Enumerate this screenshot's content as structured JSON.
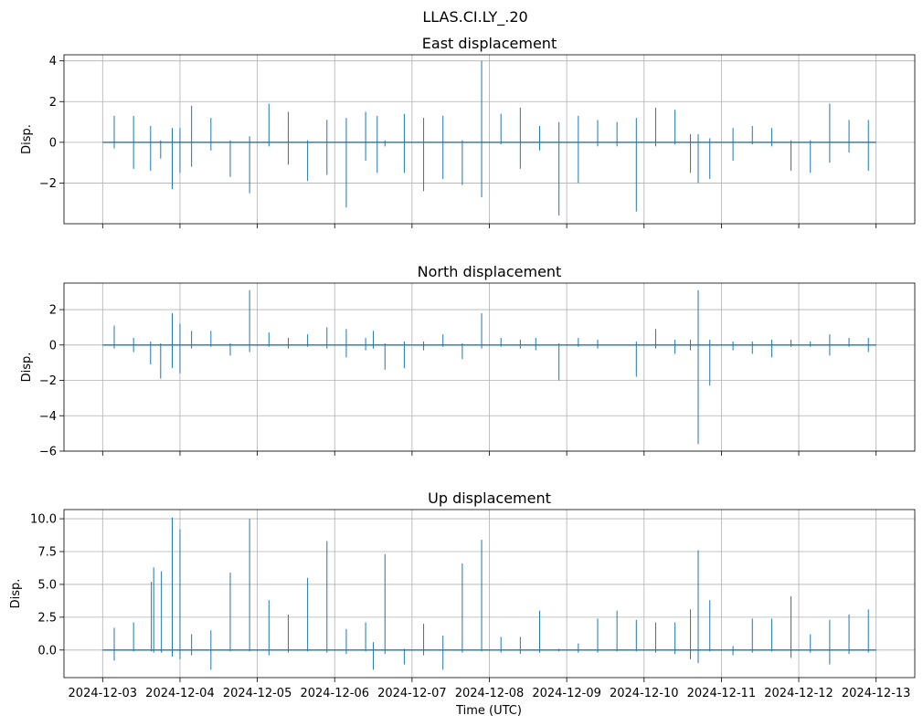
{
  "figure": {
    "suptitle": "LLAS.CI.LY_.20",
    "xlabel": "Time (UTC)",
    "line_color": "#1f77b4",
    "grid_color": "#b0b0b0"
  },
  "chart_data": [
    {
      "type": "line",
      "title": "East displacement",
      "ylabel": "Disp.",
      "ylim": [
        -4.0,
        4.3
      ],
      "yticks": [
        -2,
        0,
        2,
        4
      ],
      "ytick_labels": [
        "−2",
        "0",
        "2",
        "4"
      ],
      "xlim": [
        -0.5,
        10.5
      ],
      "x_tick_labels": [
        "2024-12-03",
        "2024-12-04",
        "2024-12-05",
        "2024-12-06",
        "2024-12-07",
        "2024-12-08",
        "2024-12-09",
        "2024-12-10",
        "2024-12-11",
        "2024-12-12",
        "2024-12-13"
      ],
      "show_x_tick_labels": false,
      "grid": true,
      "spikes": [
        {
          "x": 0.15,
          "min": -0.3,
          "max": 1.3
        },
        {
          "x": 0.4,
          "min": -1.3,
          "max": 1.3
        },
        {
          "x": 0.62,
          "min": -1.4,
          "max": 0.8
        },
        {
          "x": 0.75,
          "min": -0.8,
          "max": 0.1
        },
        {
          "x": 0.9,
          "min": -2.3,
          "max": 0.7
        },
        {
          "x": 1.0,
          "min": -1.5,
          "max": 0.7
        },
        {
          "x": 1.15,
          "min": -1.2,
          "max": 1.8
        },
        {
          "x": 1.4,
          "min": -0.4,
          "max": 1.2
        },
        {
          "x": 1.65,
          "min": -1.7,
          "max": 0.1
        },
        {
          "x": 1.9,
          "min": -2.5,
          "max": 0.3
        },
        {
          "x": 2.15,
          "min": -0.2,
          "max": 1.9
        },
        {
          "x": 2.4,
          "min": -1.1,
          "max": 1.5
        },
        {
          "x": 2.65,
          "min": -1.9,
          "max": 0.1
        },
        {
          "x": 2.9,
          "min": -1.6,
          "max": 1.1
        },
        {
          "x": 3.15,
          "min": -3.2,
          "max": 1.2
        },
        {
          "x": 3.4,
          "min": -0.9,
          "max": 1.5
        },
        {
          "x": 3.55,
          "min": -1.5,
          "max": 1.3
        },
        {
          "x": 3.65,
          "min": -0.2,
          "max": 0.1
        },
        {
          "x": 3.9,
          "min": -1.5,
          "max": 1.4
        },
        {
          "x": 4.15,
          "min": -2.4,
          "max": 1.2
        },
        {
          "x": 4.4,
          "min": -1.8,
          "max": 1.3
        },
        {
          "x": 4.65,
          "min": -2.1,
          "max": 0.1
        },
        {
          "x": 4.9,
          "min": -2.7,
          "max": 4.0
        },
        {
          "x": 5.15,
          "min": -0.1,
          "max": 1.4
        },
        {
          "x": 5.4,
          "min": -1.3,
          "max": 1.7
        },
        {
          "x": 5.65,
          "min": -0.4,
          "max": 0.8
        },
        {
          "x": 5.9,
          "min": -3.6,
          "max": 1.0
        },
        {
          "x": 6.15,
          "min": -2.0,
          "max": 1.3
        },
        {
          "x": 6.4,
          "min": -0.2,
          "max": 1.1
        },
        {
          "x": 6.65,
          "min": -0.2,
          "max": 1.0
        },
        {
          "x": 6.9,
          "min": -3.4,
          "max": 1.2
        },
        {
          "x": 7.15,
          "min": -0.2,
          "max": 1.7
        },
        {
          "x": 7.4,
          "min": -0.1,
          "max": 1.6
        },
        {
          "x": 7.6,
          "min": -1.5,
          "max": 0.4
        },
        {
          "x": 7.7,
          "min": -2.0,
          "max": 0.4
        },
        {
          "x": 7.85,
          "min": -1.8,
          "max": 0.2
        },
        {
          "x": 8.15,
          "min": -0.9,
          "max": 0.7
        },
        {
          "x": 8.4,
          "min": -0.1,
          "max": 0.8
        },
        {
          "x": 8.65,
          "min": -0.2,
          "max": 0.7
        },
        {
          "x": 8.9,
          "min": -1.4,
          "max": 0.1
        },
        {
          "x": 9.15,
          "min": -1.5,
          "max": 0.1
        },
        {
          "x": 9.4,
          "min": -1.0,
          "max": 1.9
        },
        {
          "x": 9.65,
          "min": -0.5,
          "max": 1.1
        },
        {
          "x": 9.9,
          "min": -1.4,
          "max": 1.1
        }
      ]
    },
    {
      "type": "line",
      "title": "North displacement",
      "ylabel": "Disp.",
      "ylim": [
        -6.0,
        3.5
      ],
      "yticks": [
        -6,
        -4,
        -2,
        0,
        2
      ],
      "ytick_labels": [
        "−6",
        "−4",
        "−2",
        "0",
        "2"
      ],
      "xlim": [
        -0.5,
        10.5
      ],
      "x_tick_labels": [
        "2024-12-03",
        "2024-12-04",
        "2024-12-05",
        "2024-12-06",
        "2024-12-07",
        "2024-12-08",
        "2024-12-09",
        "2024-12-10",
        "2024-12-11",
        "2024-12-12",
        "2024-12-13"
      ],
      "show_x_tick_labels": false,
      "grid": true,
      "spikes": [
        {
          "x": 0.15,
          "min": -0.2,
          "max": 1.1
        },
        {
          "x": 0.4,
          "min": -0.4,
          "max": 0.4
        },
        {
          "x": 0.62,
          "min": -1.1,
          "max": 0.2
        },
        {
          "x": 0.75,
          "min": -1.9,
          "max": 0.1
        },
        {
          "x": 0.9,
          "min": -1.3,
          "max": 1.8
        },
        {
          "x": 1.0,
          "min": -1.6,
          "max": 1.2
        },
        {
          "x": 1.15,
          "min": -0.2,
          "max": 0.8
        },
        {
          "x": 1.4,
          "min": -0.1,
          "max": 0.8
        },
        {
          "x": 1.65,
          "min": -0.6,
          "max": 0.1
        },
        {
          "x": 1.9,
          "min": -0.4,
          "max": 3.1
        },
        {
          "x": 2.15,
          "min": -0.1,
          "max": 0.7
        },
        {
          "x": 2.4,
          "min": -0.2,
          "max": 0.4
        },
        {
          "x": 2.65,
          "min": -0.1,
          "max": 0.6
        },
        {
          "x": 2.9,
          "min": -0.2,
          "max": 1.0
        },
        {
          "x": 3.15,
          "min": -0.7,
          "max": 0.9
        },
        {
          "x": 3.4,
          "min": -0.3,
          "max": 0.4
        },
        {
          "x": 3.5,
          "min": -0.2,
          "max": 0.8
        },
        {
          "x": 3.65,
          "min": -1.4,
          "max": 0.1
        },
        {
          "x": 3.9,
          "min": -1.3,
          "max": 0.2
        },
        {
          "x": 4.15,
          "min": -0.3,
          "max": 0.2
        },
        {
          "x": 4.4,
          "min": -0.1,
          "max": 0.6
        },
        {
          "x": 4.65,
          "min": -0.8,
          "max": 0.1
        },
        {
          "x": 4.9,
          "min": -0.2,
          "max": 1.8
        },
        {
          "x": 5.15,
          "min": -0.1,
          "max": 0.4
        },
        {
          "x": 5.4,
          "min": -0.2,
          "max": 0.3
        },
        {
          "x": 5.6,
          "min": -0.3,
          "max": 0.4
        },
        {
          "x": 5.9,
          "min": -2.0,
          "max": 0.1
        },
        {
          "x": 6.15,
          "min": -0.1,
          "max": 0.4
        },
        {
          "x": 6.4,
          "min": -0.2,
          "max": 0.3
        },
        {
          "x": 6.9,
          "min": -1.8,
          "max": 0.2
        },
        {
          "x": 7.15,
          "min": -0.2,
          "max": 0.9
        },
        {
          "x": 7.4,
          "min": -0.5,
          "max": 0.3
        },
        {
          "x": 7.6,
          "min": -0.3,
          "max": 0.3
        },
        {
          "x": 7.7,
          "min": -5.6,
          "max": 3.1
        },
        {
          "x": 7.85,
          "min": -2.3,
          "max": 0.3
        },
        {
          "x": 8.15,
          "min": -0.3,
          "max": 0.2
        },
        {
          "x": 8.4,
          "min": -0.5,
          "max": 0.2
        },
        {
          "x": 8.65,
          "min": -0.7,
          "max": 0.3
        },
        {
          "x": 8.9,
          "min": -0.1,
          "max": 0.3
        },
        {
          "x": 9.15,
          "min": -0.1,
          "max": 0.2
        },
        {
          "x": 9.4,
          "min": -0.6,
          "max": 0.6
        },
        {
          "x": 9.65,
          "min": -0.1,
          "max": 0.4
        },
        {
          "x": 9.9,
          "min": -0.4,
          "max": 0.4
        }
      ]
    },
    {
      "type": "line",
      "title": "Up displacement",
      "ylabel": "Disp.",
      "ylim": [
        -2.1,
        10.7
      ],
      "yticks": [
        0,
        2.5,
        5,
        7.5,
        10
      ],
      "ytick_labels": [
        "0.0",
        "2.5",
        "5.0",
        "7.5",
        "10.0"
      ],
      "xlim": [
        -0.5,
        10.5
      ],
      "x_tick_labels": [
        "2024-12-03",
        "2024-12-04",
        "2024-12-05",
        "2024-12-06",
        "2024-12-07",
        "2024-12-08",
        "2024-12-09",
        "2024-12-10",
        "2024-12-11",
        "2024-12-12",
        "2024-12-13"
      ],
      "show_x_tick_labels": true,
      "grid": true,
      "spikes": [
        {
          "x": 0.15,
          "min": -0.8,
          "max": 1.7
        },
        {
          "x": 0.4,
          "min": -0.1,
          "max": 2.1
        },
        {
          "x": 0.63,
          "min": -0.1,
          "max": 5.2
        },
        {
          "x": 0.66,
          "min": -0.2,
          "max": 6.3
        },
        {
          "x": 0.76,
          "min": -0.2,
          "max": 6.0
        },
        {
          "x": 0.9,
          "min": -0.5,
          "max": 10.1
        },
        {
          "x": 1.0,
          "min": -0.7,
          "max": 9.2
        },
        {
          "x": 1.15,
          "min": -0.4,
          "max": 1.2
        },
        {
          "x": 1.4,
          "min": -1.5,
          "max": 1.5
        },
        {
          "x": 1.65,
          "min": -0.1,
          "max": 5.9
        },
        {
          "x": 1.9,
          "min": -0.1,
          "max": 10.0
        },
        {
          "x": 2.15,
          "min": -0.4,
          "max": 3.8
        },
        {
          "x": 2.4,
          "min": -0.2,
          "max": 2.7
        },
        {
          "x": 2.65,
          "min": -0.1,
          "max": 5.5
        },
        {
          "x": 2.9,
          "min": -0.2,
          "max": 8.3
        },
        {
          "x": 3.15,
          "min": -0.3,
          "max": 1.6
        },
        {
          "x": 3.4,
          "min": -0.1,
          "max": 2.1
        },
        {
          "x": 3.5,
          "min": -1.5,
          "max": 0.6
        },
        {
          "x": 3.65,
          "min": -0.3,
          "max": 7.3
        },
        {
          "x": 3.9,
          "min": -1.1,
          "max": 0.1
        },
        {
          "x": 4.15,
          "min": -0.4,
          "max": 2.0
        },
        {
          "x": 4.4,
          "min": -1.5,
          "max": 1.1
        },
        {
          "x": 4.65,
          "min": -0.2,
          "max": 6.6
        },
        {
          "x": 4.9,
          "min": -0.1,
          "max": 8.4
        },
        {
          "x": 5.15,
          "min": -0.2,
          "max": 1.0
        },
        {
          "x": 5.4,
          "min": -0.3,
          "max": 1.0
        },
        {
          "x": 5.65,
          "min": -0.2,
          "max": 3.0
        },
        {
          "x": 5.9,
          "min": -0.1,
          "max": 0.1
        },
        {
          "x": 6.15,
          "min": -0.2,
          "max": 0.5
        },
        {
          "x": 6.4,
          "min": -0.2,
          "max": 2.4
        },
        {
          "x": 6.65,
          "min": -0.1,
          "max": 3.0
        },
        {
          "x": 6.9,
          "min": -0.1,
          "max": 2.3
        },
        {
          "x": 7.15,
          "min": -0.2,
          "max": 2.1
        },
        {
          "x": 7.4,
          "min": -0.3,
          "max": 2.1
        },
        {
          "x": 7.6,
          "min": -0.7,
          "max": 3.1
        },
        {
          "x": 7.7,
          "min": -1.0,
          "max": 7.6
        },
        {
          "x": 7.85,
          "min": -0.1,
          "max": 3.8
        },
        {
          "x": 8.15,
          "min": -0.4,
          "max": 0.3
        },
        {
          "x": 8.4,
          "min": -0.2,
          "max": 2.4
        },
        {
          "x": 8.65,
          "min": -0.1,
          "max": 2.4
        },
        {
          "x": 8.9,
          "min": -0.6,
          "max": 4.1
        },
        {
          "x": 9.15,
          "min": -0.2,
          "max": 1.2
        },
        {
          "x": 9.4,
          "min": -1.1,
          "max": 2.3
        },
        {
          "x": 9.65,
          "min": -0.3,
          "max": 2.7
        },
        {
          "x": 9.9,
          "min": -0.2,
          "max": 3.1
        }
      ]
    }
  ]
}
